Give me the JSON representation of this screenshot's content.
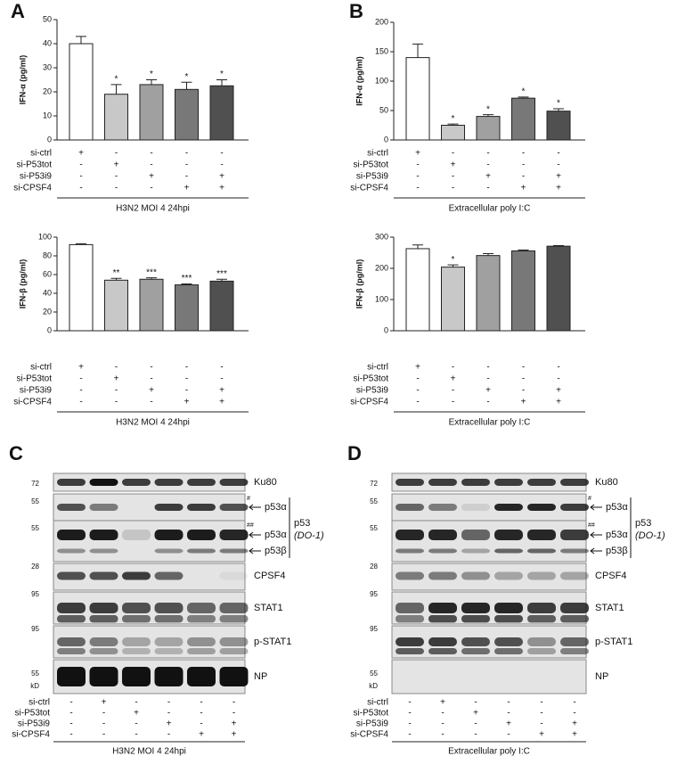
{
  "chart_data": [
    {
      "type": "bar",
      "panel": "A",
      "ylabel": "IFN-α (pg/ml)",
      "ylim": [
        0,
        50
      ],
      "yticks": [
        0,
        10,
        20,
        30,
        40,
        50
      ],
      "values": [
        40,
        19,
        23,
        21,
        22.5
      ],
      "errors": [
        3,
        4,
        2,
        3,
        2.5
      ],
      "colors": [
        "#ffffff",
        "#c8c8c8",
        "#a0a0a0",
        "#787878",
        "#505050"
      ],
      "significance": [
        null,
        "*",
        "*",
        "*",
        "*"
      ],
      "treatments": [
        {
          "name": "si-ctrl",
          "signs": [
            "+",
            "-",
            "-",
            "-",
            "-"
          ]
        },
        {
          "name": "si-P53tot",
          "signs": [
            "-",
            "+",
            "-",
            "-",
            "-"
          ]
        },
        {
          "name": "si-P53i9",
          "signs": [
            "-",
            "-",
            "+",
            "-",
            "+"
          ]
        },
        {
          "name": "si-CPSF4",
          "signs": [
            "-",
            "-",
            "-",
            "+",
            "+"
          ]
        }
      ],
      "xlabel": "H3N2 MOI 4 24hpi"
    },
    {
      "type": "bar",
      "panel": "B",
      "ylabel": "IFN-α (pg/ml)",
      "ylim": [
        0,
        200
      ],
      "yticks": [
        0,
        50,
        100,
        150,
        200
      ],
      "values": [
        140,
        25,
        40,
        71,
        49
      ],
      "errors": [
        23,
        2,
        3,
        2,
        4
      ],
      "colors": [
        "#ffffff",
        "#c8c8c8",
        "#a0a0a0",
        "#787878",
        "#505050"
      ],
      "significance": [
        null,
        "*",
        "*",
        "*",
        "*"
      ],
      "treatments": [
        {
          "name": "si-ctrl",
          "signs": [
            "+",
            "-",
            "-",
            "-",
            "-"
          ]
        },
        {
          "name": "si-P53tot",
          "signs": [
            "-",
            "+",
            "-",
            "-",
            "-"
          ]
        },
        {
          "name": "si-P53i9",
          "signs": [
            "-",
            "-",
            "+",
            "-",
            "+"
          ]
        },
        {
          "name": "si-CPSF4",
          "signs": [
            "-",
            "-",
            "-",
            "+",
            "+"
          ]
        }
      ],
      "xlabel": "Extracellular poly I:C"
    },
    {
      "type": "bar",
      "ylabel": "IFN-β (pg/ml)",
      "ylim": [
        0,
        100
      ],
      "yticks": [
        0,
        20,
        40,
        60,
        80,
        100
      ],
      "values": [
        92,
        54,
        55,
        49,
        53
      ],
      "errors": [
        1,
        2,
        1.5,
        1,
        2
      ],
      "colors": [
        "#ffffff",
        "#c8c8c8",
        "#a0a0a0",
        "#787878",
        "#505050"
      ],
      "significance": [
        null,
        "**",
        "***",
        "***",
        "***"
      ],
      "treatments": [
        {
          "name": "si-ctrl",
          "signs": [
            "+",
            "-",
            "-",
            "-",
            "-"
          ]
        },
        {
          "name": "si-P53tot",
          "signs": [
            "-",
            "+",
            "-",
            "-",
            "-"
          ]
        },
        {
          "name": "si-P53i9",
          "signs": [
            "-",
            "-",
            "+",
            "-",
            "+"
          ]
        },
        {
          "name": "si-CPSF4",
          "signs": [
            "-",
            "-",
            "-",
            "+",
            "+"
          ]
        }
      ],
      "xlabel": "H3N2 MOI 4 24hpi"
    },
    {
      "type": "bar",
      "ylabel": "IFN-β (pg/ml)",
      "ylim": [
        0,
        300
      ],
      "yticks": [
        0,
        100,
        200,
        300
      ],
      "values": [
        263,
        204,
        241,
        256,
        271
      ],
      "errors": [
        12,
        7,
        6,
        3,
        2
      ],
      "colors": [
        "#ffffff",
        "#c8c8c8",
        "#a0a0a0",
        "#787878",
        "#505050"
      ],
      "significance": [
        null,
        "*",
        null,
        null,
        null
      ],
      "treatments": [
        {
          "name": "si-ctrl",
          "signs": [
            "+",
            "-",
            "-",
            "-",
            "-"
          ]
        },
        {
          "name": "si-P53tot",
          "signs": [
            "-",
            "+",
            "-",
            "-",
            "-"
          ]
        },
        {
          "name": "si-P53i9",
          "signs": [
            "-",
            "-",
            "+",
            "-",
            "+"
          ]
        },
        {
          "name": "si-CPSF4",
          "signs": [
            "-",
            "-",
            "-",
            "+",
            "+"
          ]
        }
      ],
      "xlabel": "Extracellular poly I:C"
    }
  ],
  "blots": [
    {
      "panel": "C",
      "markers": [
        "72",
        "55",
        "55",
        "28",
        "95",
        "95",
        "55",
        "kD"
      ],
      "bands": [
        "Ku80",
        "p53α",
        "p53α",
        "p53β",
        "CPSF4",
        "STAT1",
        "p-STAT1",
        "NP"
      ],
      "group": [
        "p53",
        "(DO-1)"
      ],
      "notes": [
        "#",
        "##"
      ],
      "treatments": [
        {
          "name": "si-ctrl",
          "signs": [
            "-",
            "+",
            "-",
            "-",
            "-",
            "-"
          ]
        },
        {
          "name": "si-P53tot",
          "signs": [
            "-",
            "-",
            "+",
            "-",
            "-",
            "-"
          ]
        },
        {
          "name": "si-P53i9",
          "signs": [
            "-",
            "-",
            "-",
            "+",
            "-",
            "+"
          ]
        },
        {
          "name": "si-CPSF4",
          "signs": [
            "-",
            "-",
            "-",
            "-",
            "+",
            "+"
          ]
        }
      ],
      "xlabel": "H3N2 MOI 4 24hpi"
    },
    {
      "panel": "D",
      "markers": [
        "72",
        "55",
        "55",
        "28",
        "95",
        "95",
        "55",
        "kD"
      ],
      "bands": [
        "Ku80",
        "p53α",
        "p53α",
        "p53β",
        "CPSF4",
        "STAT1",
        "p-STAT1",
        "NP"
      ],
      "group": [
        "p53",
        "(DO-1)"
      ],
      "notes": [
        "#",
        "##"
      ],
      "treatments": [
        {
          "name": "si-ctrl",
          "signs": [
            "-",
            "+",
            "-",
            "-",
            "-",
            "-"
          ]
        },
        {
          "name": "si-P53tot",
          "signs": [
            "-",
            "-",
            "+",
            "-",
            "-",
            "-"
          ]
        },
        {
          "name": "si-P53i9",
          "signs": [
            "-",
            "-",
            "-",
            "+",
            "-",
            "+"
          ]
        },
        {
          "name": "si-CPSF4",
          "signs": [
            "-",
            "-",
            "-",
            "-",
            "+",
            "+"
          ]
        }
      ],
      "xlabel": "Extracellular poly I:C"
    }
  ]
}
